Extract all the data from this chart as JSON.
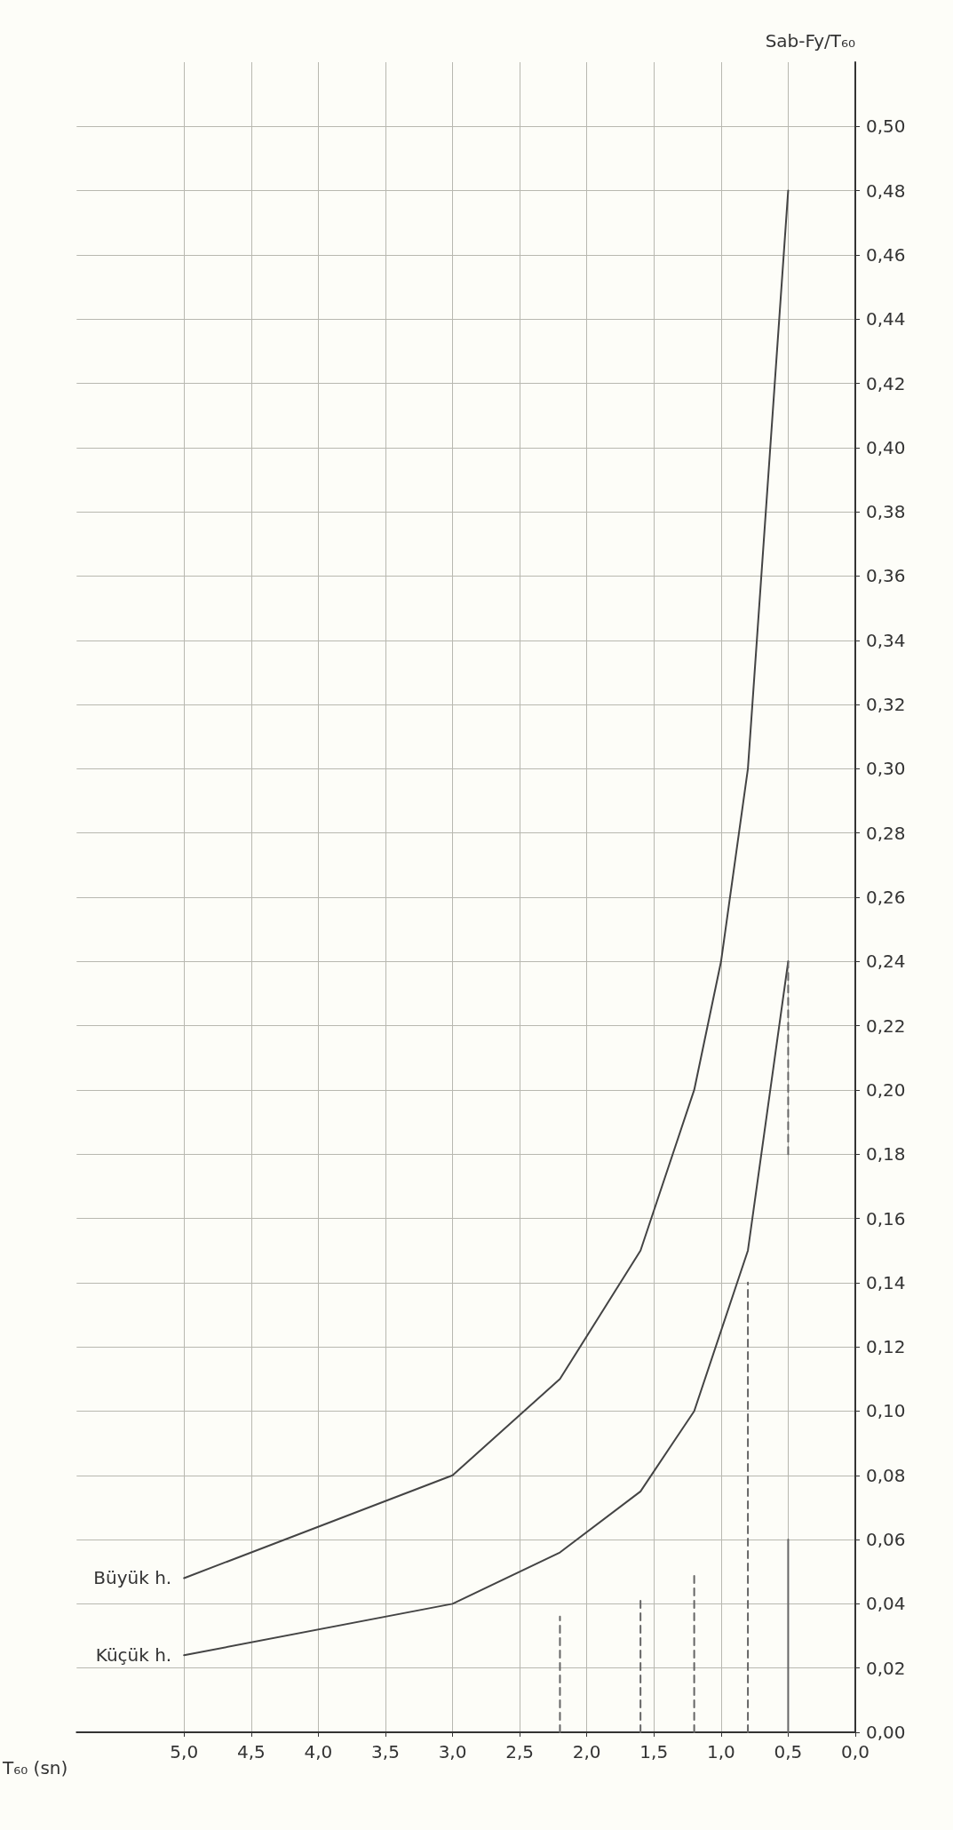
{
  "chart_data": {
    "type": "line",
    "xlabel": "T₆₀ (sn)",
    "ylabel": "Sab-Fy/T₆₀",
    "xlim": [
      5.8,
      0
    ],
    "xticks": [
      {
        "value": 5,
        "label": "5,0"
      },
      {
        "value": 4.5,
        "label": "4,5"
      },
      {
        "value": 4,
        "label": "4,0"
      },
      {
        "value": 3.5,
        "label": "3,5"
      },
      {
        "value": 3,
        "label": "3,0"
      },
      {
        "value": 2.5,
        "label": "2,5"
      },
      {
        "value": 2,
        "label": "2,0"
      },
      {
        "value": 1.5,
        "label": "1,5"
      },
      {
        "value": 1,
        "label": "1,0"
      },
      {
        "value": 0.5,
        "label": "0,5"
      },
      {
        "value": 0,
        "label": "0,0"
      }
    ],
    "ylim": [
      0,
      0.52
    ],
    "yticks": [
      {
        "value": 0,
        "label": "0,00"
      },
      {
        "value": 0.02,
        "label": "0,02"
      },
      {
        "value": 0.04,
        "label": "0,04"
      },
      {
        "value": 0.06,
        "label": "0,06"
      },
      {
        "value": 0.08,
        "label": "0,08"
      },
      {
        "value": 0.1,
        "label": "0,10"
      },
      {
        "value": 0.12,
        "label": "0,12"
      },
      {
        "value": 0.14,
        "label": "0,14"
      },
      {
        "value": 0.16,
        "label": "0,16"
      },
      {
        "value": 0.18,
        "label": "0,18"
      },
      {
        "value": 0.2,
        "label": "0,20"
      },
      {
        "value": 0.22,
        "label": "0,22"
      },
      {
        "value": 0.24,
        "label": "0,24"
      },
      {
        "value": 0.26,
        "label": "0,26"
      },
      {
        "value": 0.28,
        "label": "0,28"
      },
      {
        "value": 0.3,
        "label": "0,30"
      },
      {
        "value": 0.32,
        "label": "0,32"
      },
      {
        "value": 0.34,
        "label": "0,34"
      },
      {
        "value": 0.36,
        "label": "0,36"
      },
      {
        "value": 0.38,
        "label": "0,38"
      },
      {
        "value": 0.4,
        "label": "0,40"
      },
      {
        "value": 0.42,
        "label": "0,42"
      },
      {
        "value": 0.44,
        "label": "0,44"
      },
      {
        "value": 0.46,
        "label": "0,46"
      },
      {
        "value": 0.48,
        "label": "0,48"
      },
      {
        "value": 0.5,
        "label": "0,50"
      }
    ],
    "grid": true,
    "legend": false,
    "marker": "none",
    "line_style": "solid",
    "series": [
      {
        "name": "Küçük h.",
        "color": "#444444",
        "x": [
          5,
          3,
          2.2,
          1.6,
          1.2,
          0.8,
          0.5
        ],
        "values": [
          0.024,
          0.04,
          0.056,
          0.075,
          0.1,
          0.15,
          0.24
        ]
      },
      {
        "name": "Büyük h.",
        "color": "#444444",
        "x": [
          5,
          3,
          2.2,
          1.6,
          1.2,
          1.0,
          0.8,
          0.5
        ],
        "values": [
          0.048,
          0.08,
          0.11,
          0.15,
          0.2,
          0.24,
          0.3,
          0.48
        ]
      },
      {
        "color": "#666666",
        "line_style": "dashed",
        "x": [
          2.2,
          2.2
        ],
        "values": [
          0,
          0.036
        ]
      },
      {
        "color": "#666666",
        "line_style": "dashed",
        "x": [
          1.6,
          1.6
        ],
        "values": [
          0,
          0.041
        ]
      },
      {
        "color": "#666666",
        "line_style": "dashed",
        "x": [
          1.2,
          1.2
        ],
        "values": [
          0,
          0.049
        ]
      },
      {
        "color": "#666666",
        "line_style": "dashed",
        "x": [
          0.8,
          0.8
        ],
        "values": [
          0,
          0.14
        ]
      },
      {
        "color": "#666666",
        "line_style": "solid",
        "x": [
          0.5,
          0.5
        ],
        "values": [
          0,
          0.06
        ]
      },
      {
        "color": "#666666",
        "line_style": "dashed",
        "x": [
          0.5,
          0.5
        ],
        "values": [
          0.18,
          0.24
        ]
      }
    ]
  }
}
